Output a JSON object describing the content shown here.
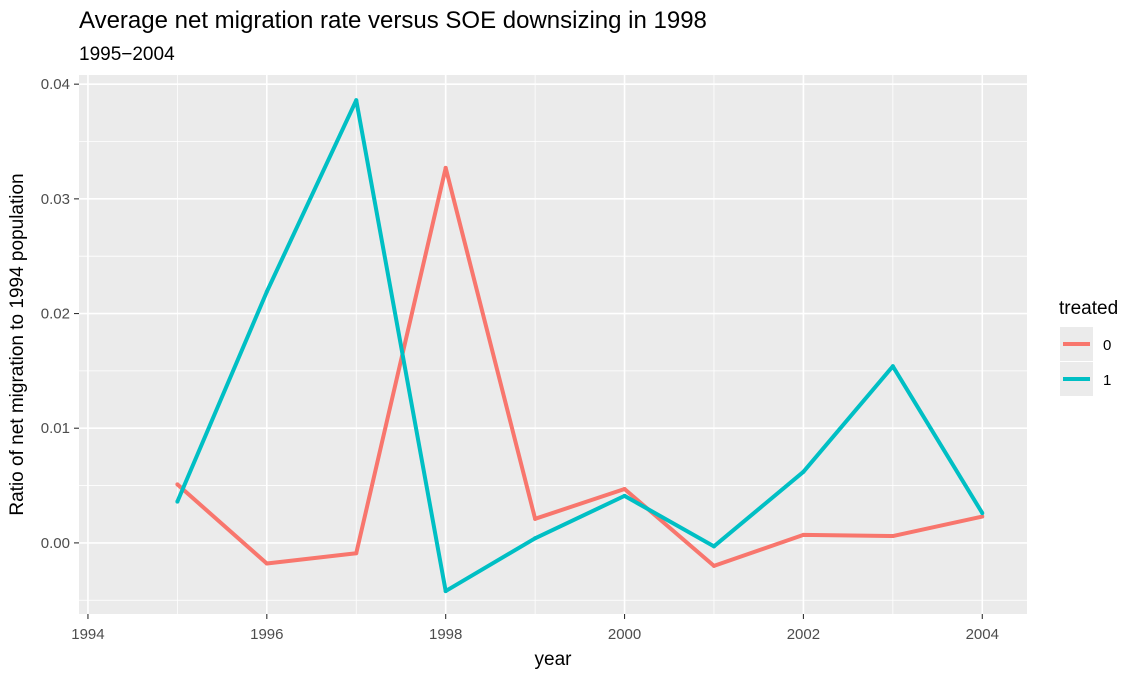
{
  "chart_data": {
    "type": "line",
    "title": "Average net migration rate versus SOE downsizing in 1998",
    "subtitle": "1995−2004",
    "xlabel": "year",
    "ylabel": "Ratio of net migration to 1994 population",
    "xlim": [
      1993.9,
      2004.5
    ],
    "ylim": [
      -0.0062,
      0.0408
    ],
    "x_ticks": [
      1994,
      1996,
      1998,
      2000,
      2002,
      2004
    ],
    "x_tick_labels": [
      "1994",
      "1996",
      "1998",
      "2000",
      "2002",
      "2004"
    ],
    "y_ticks": [
      0.0,
      0.01,
      0.02,
      0.03,
      0.04
    ],
    "y_tick_labels": [
      "0.00",
      "0.01",
      "0.02",
      "0.03",
      "0.04"
    ],
    "legend": {
      "title": "treated",
      "position": "right"
    },
    "grid": true,
    "series": [
      {
        "name": "0",
        "color": "#F8766D",
        "x": [
          1995,
          1996,
          1997,
          1998,
          1999,
          2000,
          2001,
          2002,
          2003,
          2004
        ],
        "y": [
          0.0051,
          -0.0018,
          -0.0009,
          0.0327,
          0.0021,
          0.0047,
          -0.002,
          0.0007,
          0.0006,
          0.0023
        ]
      },
      {
        "name": "1",
        "color": "#00BFC4",
        "x": [
          1995,
          1996,
          1997,
          1998,
          1999,
          2000,
          2001,
          2002,
          2003,
          2004
        ],
        "y": [
          0.0036,
          0.0219,
          0.0386,
          -0.0042,
          0.0004,
          0.0041,
          -0.0003,
          0.0062,
          0.0154,
          0.0026
        ]
      }
    ]
  }
}
